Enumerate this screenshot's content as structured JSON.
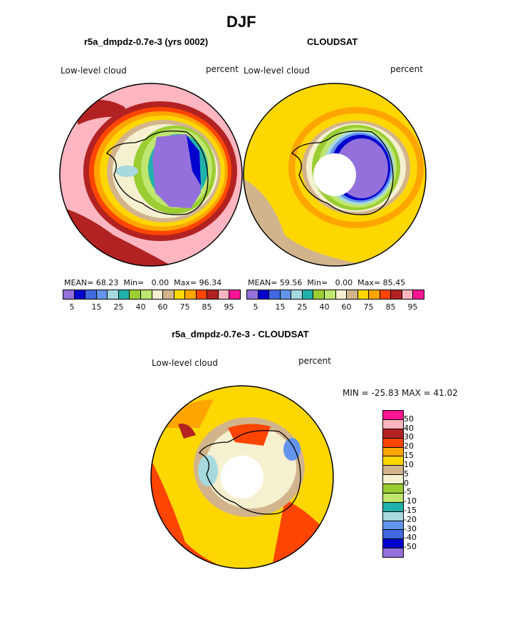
{
  "page_title": "DJF",
  "colors": {
    "abs_scale": [
      "#9370DB",
      "#0000CD",
      "#4169E1",
      "#6495ED",
      "#A6DADF",
      "#20B2AA",
      "#9ACD32",
      "#BFE66E",
      "#F5F0D0",
      "#D2B48C",
      "#FFD700",
      "#FFA500",
      "#FF4500",
      "#B22222",
      "#FFB6C1",
      "#FF1493"
    ],
    "diff_scale": [
      "#FF1493",
      "#FFB6C1",
      "#B22222",
      "#FF4500",
      "#FFA500",
      "#FFD700",
      "#D2B48C",
      "#F5F0D0",
      "#9ACD32",
      "#BFE66E",
      "#20B2AA",
      "#A6DADF",
      "#6495ED",
      "#4169E1",
      "#0000CD",
      "#9370DB"
    ]
  },
  "chart_data": [
    {
      "type": "polar-contour",
      "title": "r5a_dmpdz-0.7e-3 (yrs 0002)",
      "left_label": "Low-level cloud",
      "right_label": "percent",
      "stats": {
        "mean_label": "MEAN=",
        "mean": "68.23",
        "min_label": "Min=",
        "min": "0.00",
        "max_label": "Max=",
        "max": "96.34"
      },
      "colorbar_ticks": [
        "5",
        "15",
        "25",
        "40",
        "60",
        "75",
        "85",
        "95"
      ],
      "levels": [
        5,
        10,
        15,
        20,
        25,
        30,
        40,
        50,
        60,
        70,
        75,
        80,
        85,
        90,
        95
      ]
    },
    {
      "type": "polar-contour",
      "title": "CLOUDSAT",
      "left_label": "Low-level cloud",
      "right_label": "percent",
      "stats": {
        "mean_label": "MEAN=",
        "mean": "59.56",
        "min_label": "Min=",
        "min": "0.00",
        "max_label": "Max=",
        "max": "85.45"
      },
      "colorbar_ticks": [
        "5",
        "15",
        "25",
        "40",
        "60",
        "75",
        "85",
        "95"
      ],
      "levels": [
        5,
        10,
        15,
        20,
        25,
        30,
        40,
        50,
        60,
        70,
        75,
        80,
        85,
        90,
        95
      ]
    },
    {
      "type": "polar-contour",
      "title": "r5a_dmpdz-0.7e-3 - CLOUDSAT",
      "left_label": "Low-level cloud",
      "right_label": "percent",
      "minmax_text": "MIN = -25.83 MAX =  41.02",
      "colorbar_ticks": [
        "50",
        "40",
        "30",
        "20",
        "15",
        "10",
        "5",
        "0",
        "-5",
        "-10",
        "-15",
        "-20",
        "-30",
        "-40",
        "-50"
      ]
    }
  ]
}
